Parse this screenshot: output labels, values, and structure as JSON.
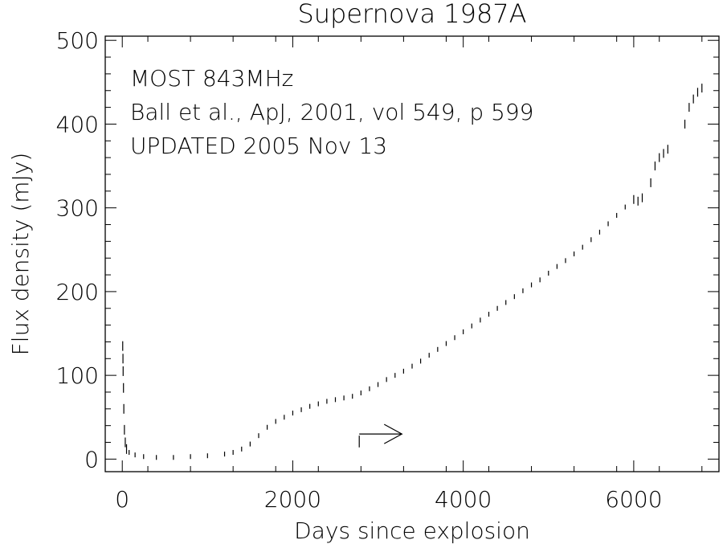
{
  "chart_data": {
    "type": "scatter",
    "title": "Supernova 1987A",
    "xlabel": "Days since explosion",
    "ylabel": "Flux density (mJy)",
    "xlim": [
      -200,
      7000
    ],
    "ylim": [
      -15,
      505
    ],
    "xticks": [
      0,
      2000,
      4000,
      6000
    ],
    "xtick_labels": [
      "0",
      "2000",
      "4000",
      "6000"
    ],
    "yticks": [
      0,
      100,
      200,
      300,
      400,
      500
    ],
    "ytick_labels": [
      "0",
      "100",
      "200",
      "300",
      "400",
      "500"
    ],
    "annotations": [
      "MOST 843MHz",
      "Ball et al., ApJ, 2001, vol 549, p 599",
      "UPDATED 2005 Nov 13"
    ],
    "marker_line_x": 2780,
    "arrow_from_x": 2780,
    "arrow_to_x": 3280,
    "arrow_y": 30,
    "marker_line_y_range": [
      14,
      28
    ],
    "grid": false,
    "series": [
      {
        "values": [
          [
            5,
            135
          ],
          [
            8,
            120
          ],
          [
            10,
            105
          ],
          [
            14,
            85
          ],
          [
            18,
            60
          ],
          [
            25,
            35
          ],
          [
            35,
            20
          ],
          [
            50,
            12
          ],
          [
            80,
            8
          ],
          [
            150,
            5
          ],
          [
            250,
            3
          ],
          [
            400,
            2
          ],
          [
            600,
            2
          ],
          [
            800,
            3
          ],
          [
            1000,
            4
          ],
          [
            1200,
            6
          ],
          [
            1300,
            8
          ],
          [
            1400,
            12
          ],
          [
            1500,
            18
          ],
          [
            1600,
            28
          ],
          [
            1700,
            38
          ],
          [
            1800,
            45
          ],
          [
            1900,
            50
          ],
          [
            2000,
            55
          ],
          [
            2100,
            59
          ],
          [
            2200,
            63
          ],
          [
            2300,
            66
          ],
          [
            2400,
            69
          ],
          [
            2500,
            71
          ],
          [
            2600,
            73
          ],
          [
            2700,
            75
          ],
          [
            2800,
            79
          ],
          [
            2900,
            84
          ],
          [
            3000,
            89
          ],
          [
            3100,
            95
          ],
          [
            3200,
            100
          ],
          [
            3300,
            105
          ],
          [
            3400,
            111
          ],
          [
            3500,
            117
          ],
          [
            3600,
            124
          ],
          [
            3700,
            131
          ],
          [
            3800,
            138
          ],
          [
            3900,
            145
          ],
          [
            4000,
            152
          ],
          [
            4100,
            159
          ],
          [
            4200,
            166
          ],
          [
            4300,
            173
          ],
          [
            4400,
            180
          ],
          [
            4500,
            187
          ],
          [
            4600,
            194
          ],
          [
            4700,
            201
          ],
          [
            4800,
            208
          ],
          [
            4900,
            214
          ],
          [
            5000,
            222
          ],
          [
            5100,
            230
          ],
          [
            5200,
            237
          ],
          [
            5300,
            245
          ],
          [
            5400,
            253
          ],
          [
            5500,
            262
          ],
          [
            5600,
            271
          ],
          [
            5700,
            281
          ],
          [
            5800,
            291
          ],
          [
            5900,
            301
          ],
          [
            6000,
            310
          ],
          [
            6050,
            308
          ],
          [
            6100,
            312
          ],
          [
            6200,
            330
          ],
          [
            6250,
            350
          ],
          [
            6300,
            360
          ],
          [
            6350,
            365
          ],
          [
            6400,
            370
          ],
          [
            6600,
            400
          ],
          [
            6650,
            420
          ],
          [
            6700,
            430
          ],
          [
            6750,
            438
          ],
          [
            6800,
            443
          ]
        ]
      }
    ]
  }
}
